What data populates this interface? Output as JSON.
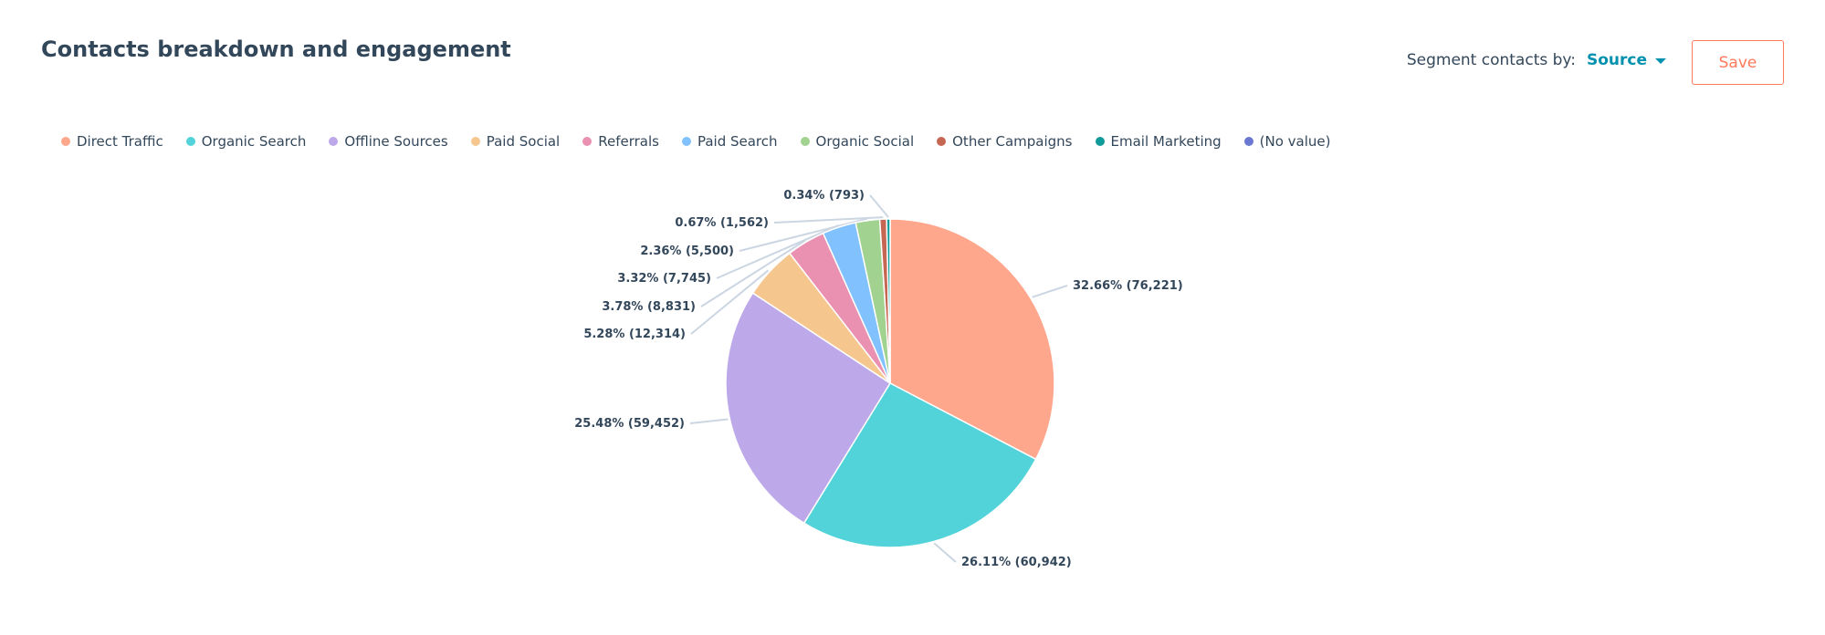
{
  "header": {
    "title": "Contacts breakdown and engagement"
  },
  "segment": {
    "label": "Segment contacts by:",
    "value": "Source",
    "save_label": "Save"
  },
  "colors": {
    "accent": "#0091ae",
    "save": "#ff7a59",
    "leader_line": "#cbd6e2"
  },
  "chart_data": {
    "type": "pie",
    "title": "",
    "legend_position": "top",
    "series": [
      {
        "name": "Direct Traffic",
        "value": 76221,
        "percent": 32.66,
        "label": "32.66% (76,221)",
        "color": "#ffa78c"
      },
      {
        "name": "Organic Search",
        "value": 60942,
        "percent": 26.11,
        "label": "26.11% (60,942)",
        "color": "#51d3d9"
      },
      {
        "name": "Offline Sources",
        "value": 59452,
        "percent": 25.48,
        "label": "25.48% (59,452)",
        "color": "#bda9ea"
      },
      {
        "name": "Paid Social",
        "value": 12314,
        "percent": 5.28,
        "label": "5.28% (12,314)",
        "color": "#f5c78e"
      },
      {
        "name": "Referrals",
        "value": 8831,
        "percent": 3.78,
        "label": "3.78% (8,831)",
        "color": "#ea90b1"
      },
      {
        "name": "Paid Search",
        "value": 7745,
        "percent": 3.32,
        "label": "3.32% (7,745)",
        "color": "#81c1fd"
      },
      {
        "name": "Organic Social",
        "value": 5500,
        "percent": 2.36,
        "label": "2.36% (5,500)",
        "color": "#a2d28f"
      },
      {
        "name": "Other Campaigns",
        "value": 1562,
        "percent": 0.67,
        "label": "0.67% (1,562)",
        "color": "#c66753"
      },
      {
        "name": "Email Marketing",
        "value": 793,
        "percent": 0.34,
        "label": "0.34% (793)",
        "color": "#109a99"
      },
      {
        "name": "(No value)",
        "value": 0,
        "percent": 0,
        "label": "",
        "color": "#6a78d1"
      }
    ]
  }
}
